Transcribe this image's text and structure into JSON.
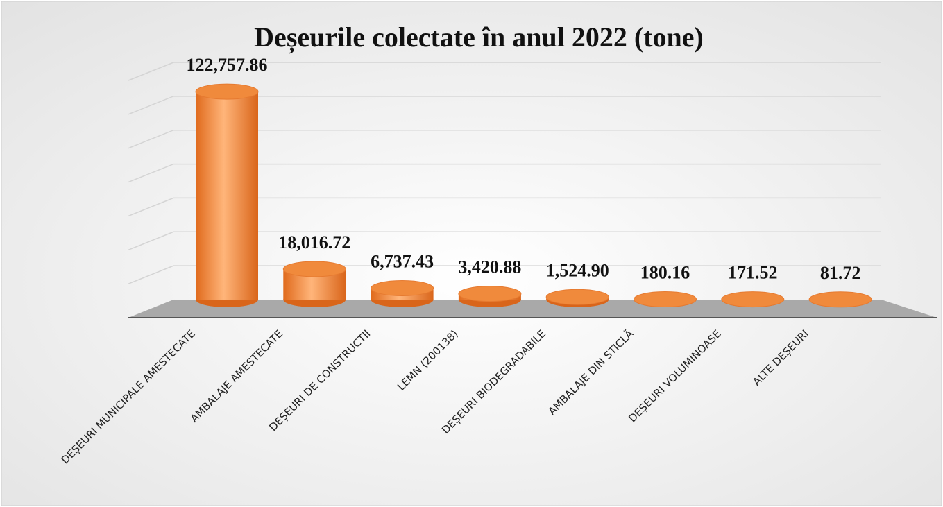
{
  "chart_data": {
    "type": "bar",
    "title": "Deșeurile colectate în anul 2022 (tone)",
    "categories": [
      "DEȘEURI MUNICIPALE AMESTECATE",
      "AMBALAJE AMESTECATE",
      "DEȘEURI DE CONSTRUCTII",
      "LEMN (200138)",
      "DEȘEURI BIODEGRADABILE",
      "AMBALAJE DIN STICLĂ",
      "DEȘEURI VOLUMINOASE",
      "ALTE DEȘEURI"
    ],
    "values": [
      122757.86,
      18016.72,
      6737.43,
      3420.88,
      1524.9,
      180.16,
      171.52,
      81.72
    ],
    "value_labels": [
      "122,757.86",
      "18,016.72",
      "6,737.43",
      "3,420.88",
      "1,524.90",
      "180.16",
      "171.52",
      "81.72"
    ],
    "color": "#f08a3c",
    "ylim": [
      0,
      140000
    ],
    "yticks": [
      0,
      20000,
      40000,
      60000,
      80000,
      100000,
      120000,
      140000
    ],
    "grid": true
  }
}
